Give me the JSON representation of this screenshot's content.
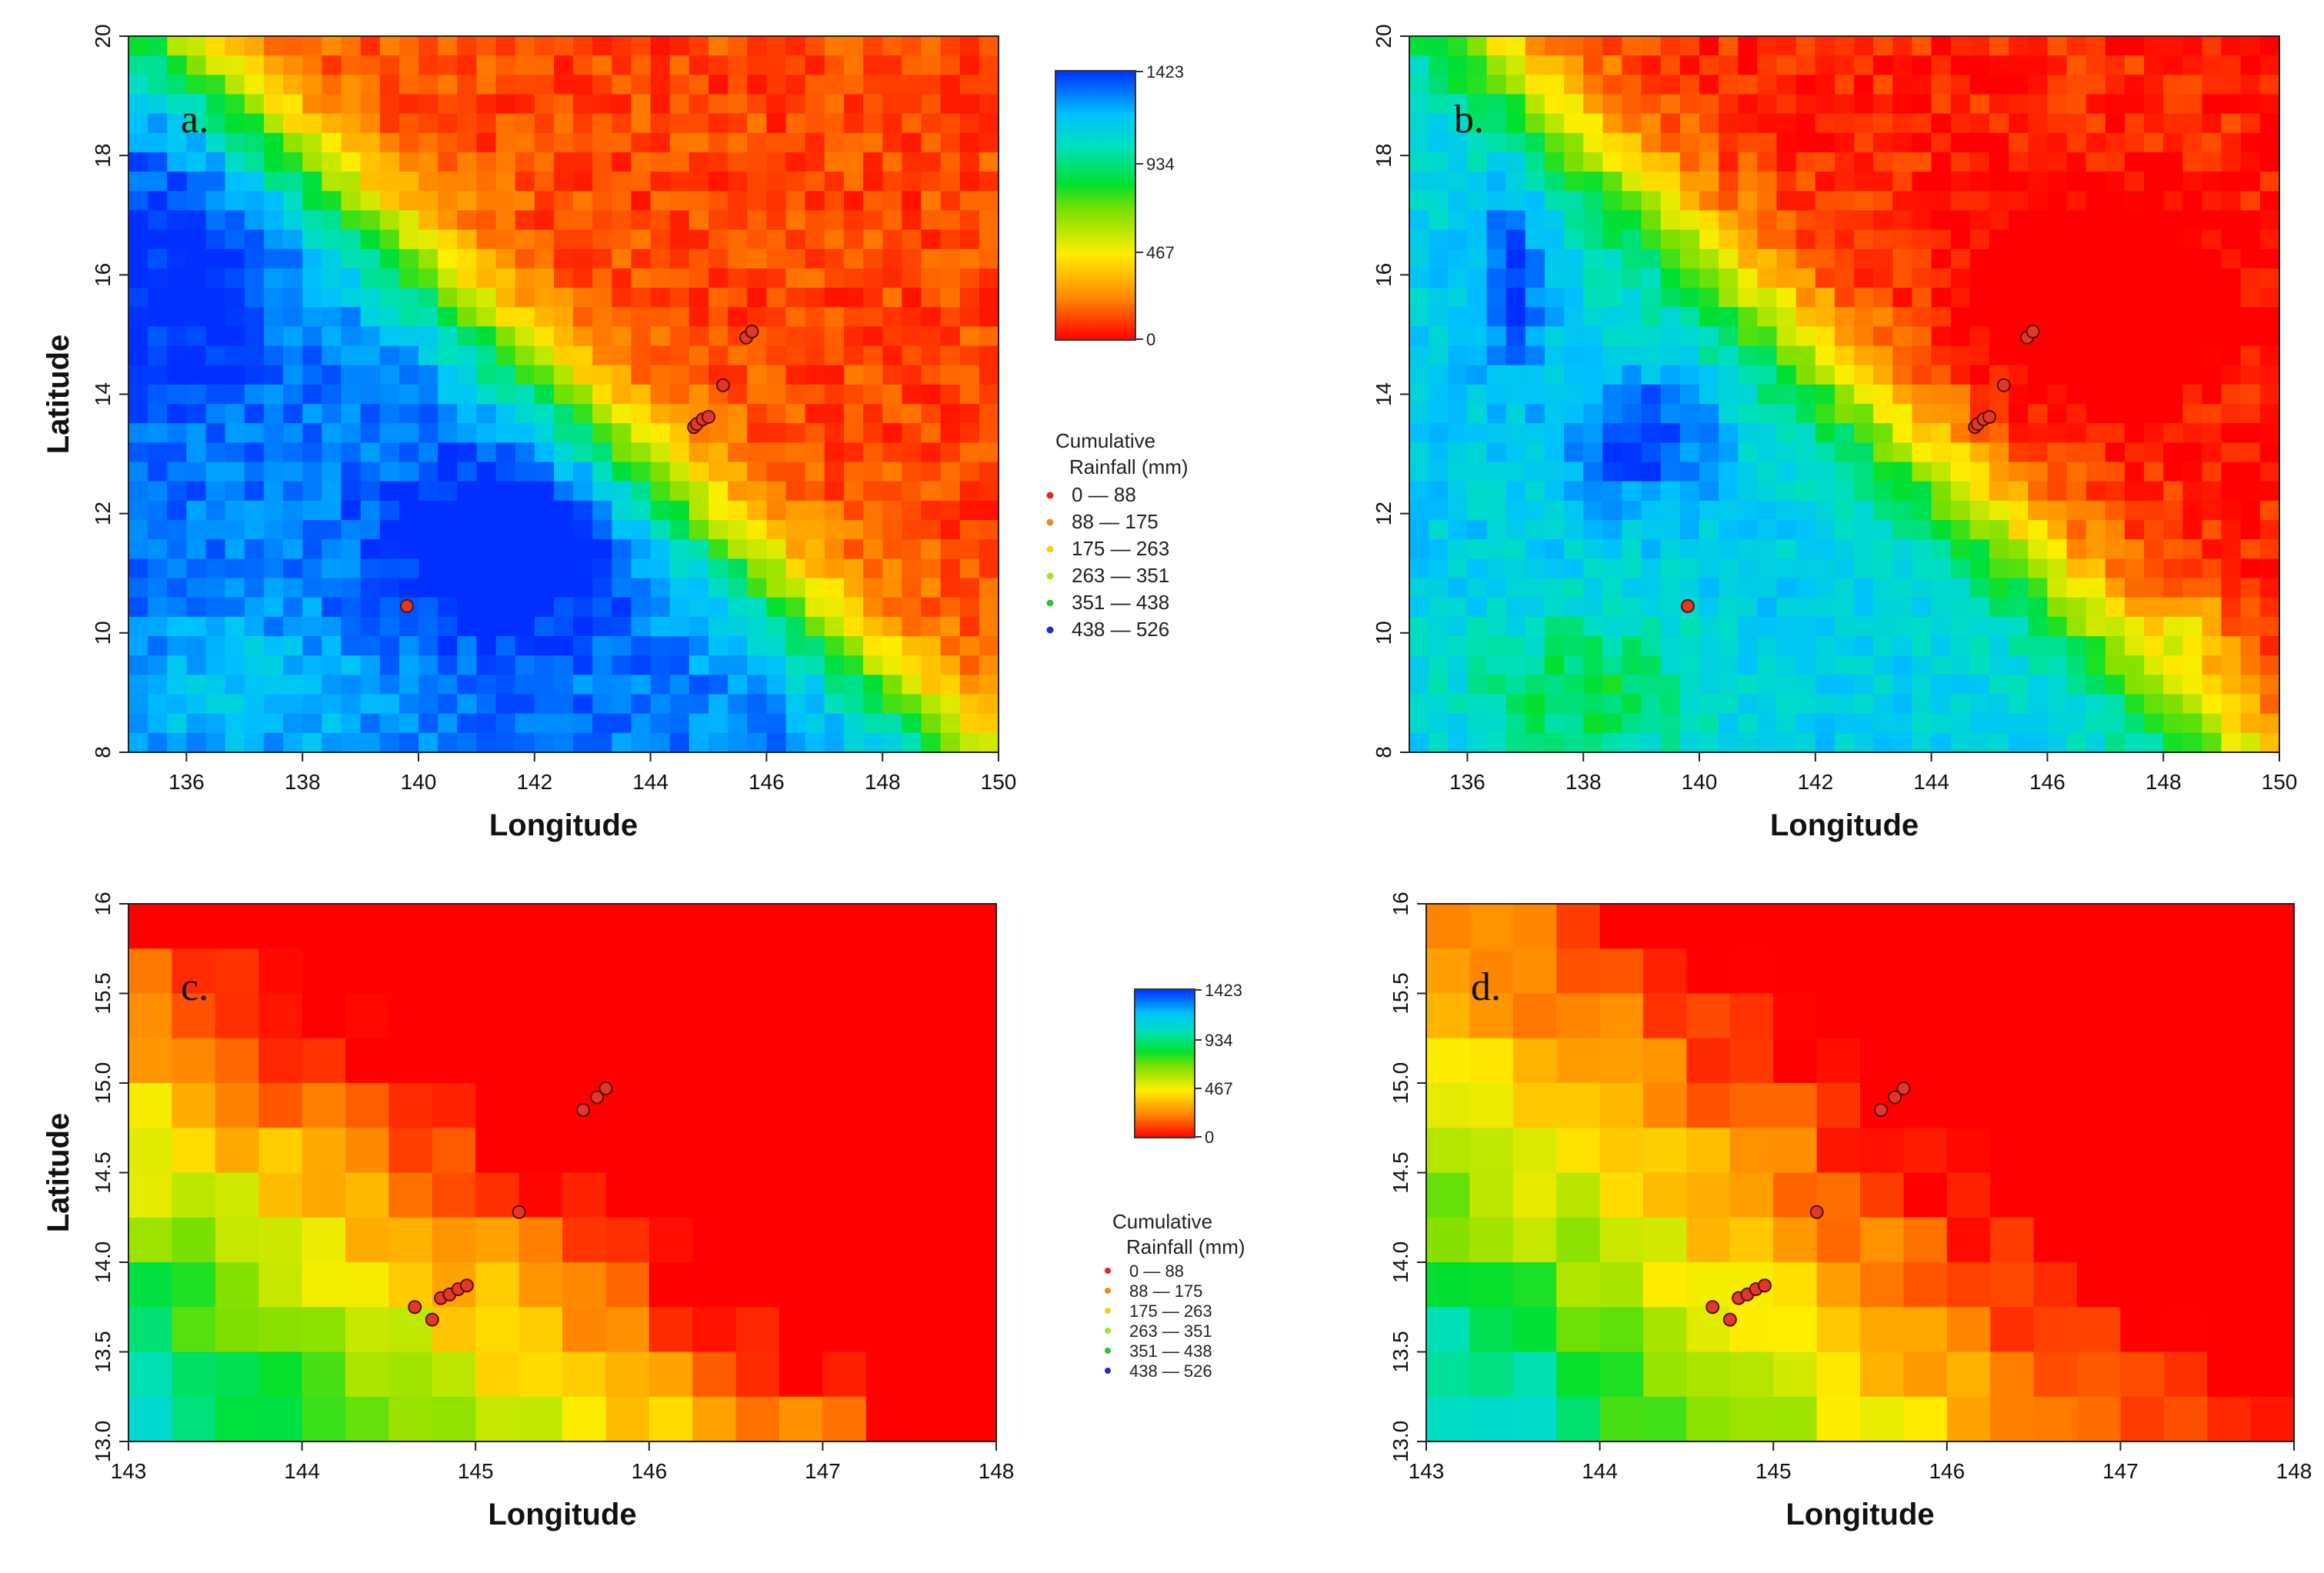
{
  "figure": {
    "colorbar_ticks": [
      "1423",
      "934",
      "467",
      "0"
    ],
    "legend_title_1": "Cumulative",
    "legend_title_2": "Rainfall (mm)",
    "rain_classes": [
      {
        "label": "0 — 88",
        "color": "#e8261f"
      },
      {
        "label": "88 — 175",
        "color": "#f08a24"
      },
      {
        "label": "175 — 263",
        "color": "#f5cf1e"
      },
      {
        "label": "263 — 351",
        "color": "#a6e22c"
      },
      {
        "label": "351 — 438",
        "color": "#33c13a"
      },
      {
        "label": "438 — 526",
        "color": "#1c2fc8"
      }
    ]
  },
  "chart_data": [
    {
      "type": "heatmap",
      "panel_label": "a.",
      "xlabel": "Longitude",
      "ylabel": "Latitude",
      "xlim": [
        135,
        150
      ],
      "ylim": [
        8,
        20
      ],
      "xticks": [
        "136",
        "138",
        "140",
        "142",
        "144",
        "146",
        "148",
        "150"
      ],
      "yticks": [
        "8",
        "10",
        "12",
        "14",
        "16",
        "18",
        "20"
      ],
      "value_range": [
        0,
        1423
      ],
      "stations": [
        [
          144.75,
          13.45
        ],
        [
          144.8,
          13.5
        ],
        [
          144.9,
          13.58
        ],
        [
          145.0,
          13.62
        ],
        [
          145.25,
          14.15
        ],
        [
          145.65,
          14.95
        ],
        [
          145.75,
          15.05
        ],
        [
          139.8,
          10.45
        ]
      ]
    },
    {
      "type": "heatmap",
      "panel_label": "b.",
      "xlabel": "Longitude",
      "ylabel": "",
      "xlim": [
        135,
        150
      ],
      "ylim": [
        8,
        20
      ],
      "xticks": [
        "136",
        "138",
        "140",
        "142",
        "144",
        "146",
        "148",
        "150"
      ],
      "yticks": [
        "8",
        "10",
        "12",
        "14",
        "16",
        "18",
        "20"
      ],
      "value_range": [
        0,
        1423
      ],
      "stations": [
        [
          144.75,
          13.45
        ],
        [
          144.8,
          13.5
        ],
        [
          144.9,
          13.58
        ],
        [
          145.0,
          13.62
        ],
        [
          145.25,
          14.15
        ],
        [
          145.65,
          14.95
        ],
        [
          145.75,
          15.05
        ],
        [
          139.8,
          10.45
        ]
      ]
    },
    {
      "type": "heatmap",
      "panel_label": "c.",
      "xlabel": "Longitude",
      "ylabel": "Latitude",
      "xlim": [
        143,
        148
      ],
      "ylim": [
        13,
        16
      ],
      "xticks": [
        "143",
        "144",
        "145",
        "146",
        "147",
        "148"
      ],
      "yticks": [
        "13.0",
        "13.5",
        "14.0",
        "14.5",
        "15.0",
        "15.5",
        "16"
      ],
      "value_range": [
        0,
        1423
      ],
      "stations": [
        [
          144.65,
          13.75
        ],
        [
          144.75,
          13.68
        ],
        [
          144.8,
          13.8
        ],
        [
          144.85,
          13.82
        ],
        [
          144.9,
          13.85
        ],
        [
          144.95,
          13.87
        ],
        [
          145.25,
          14.28
        ],
        [
          145.62,
          14.85
        ],
        [
          145.7,
          14.92
        ],
        [
          145.75,
          14.97
        ]
      ]
    },
    {
      "type": "heatmap",
      "panel_label": "d.",
      "xlabel": "Longitude",
      "ylabel": "",
      "xlim": [
        143,
        148
      ],
      "ylim": [
        13,
        16
      ],
      "xticks": [
        "143",
        "144",
        "145",
        "146",
        "147",
        "148"
      ],
      "yticks": [
        "13.0",
        "13.5",
        "14.0",
        "14.5",
        "15.0",
        "15.5",
        "16"
      ],
      "value_range": [
        0,
        1423
      ],
      "stations": [
        [
          144.65,
          13.75
        ],
        [
          144.75,
          13.68
        ],
        [
          144.8,
          13.8
        ],
        [
          144.85,
          13.82
        ],
        [
          144.9,
          13.85
        ],
        [
          144.95,
          13.87
        ],
        [
          145.25,
          14.28
        ],
        [
          145.62,
          14.85
        ],
        [
          145.7,
          14.92
        ],
        [
          145.75,
          14.97
        ]
      ]
    }
  ]
}
